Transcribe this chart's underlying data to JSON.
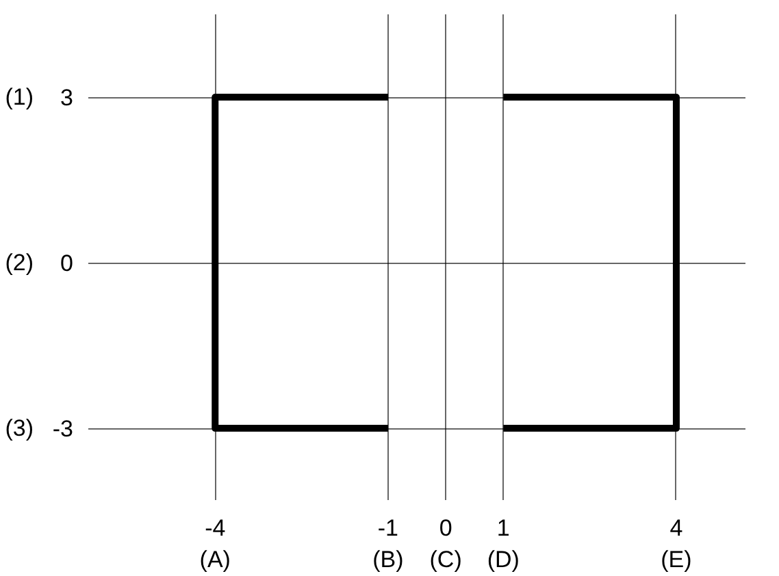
{
  "chart_data": {
    "type": "line",
    "series": [
      {
        "color": "#000000",
        "x": [
          -1,
          -4,
          -4,
          -1
        ],
        "values": [
          3,
          3,
          -3,
          -3
        ]
      },
      {
        "color": "#000000",
        "x": [
          1,
          4,
          4,
          1
        ],
        "values": [
          3,
          3,
          -3,
          -3
        ]
      }
    ],
    "xlim": [
      -6.2,
      5.2
    ],
    "ylim": [
      -4.3,
      4.5
    ],
    "xticks": [
      {
        "value": -4,
        "label": "-4\n(A)"
      },
      {
        "value": -1,
        "label": "-1\n(B)"
      },
      {
        "value": 0,
        "label": "0\n(C)"
      },
      {
        "value": 1,
        "label": "1\n(D)"
      },
      {
        "value": 4,
        "label": "4\n(E)"
      }
    ],
    "yticks": [
      3,
      0,
      -3
    ],
    "annotations": [
      "(1)",
      "(2)",
      "(3)"
    ],
    "grid": true,
    "marker": "none",
    "line_style": "solid"
  }
}
